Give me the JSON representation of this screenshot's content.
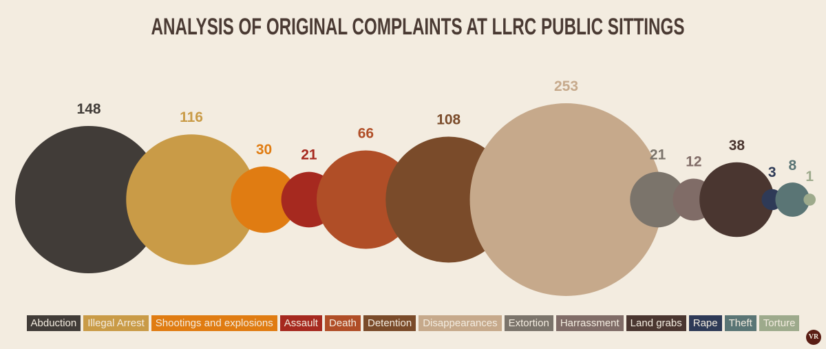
{
  "chart_data": {
    "type": "bubble",
    "title": "ANALYSIS OF ORIGINAL COMPLAINTS AT LLRC PUBLIC SITTINGS",
    "categories": [
      "Abduction",
      "Illegal Arrest",
      "Shootings and explosions",
      "Assault",
      "Death",
      "Detention",
      "Disappearances",
      "Extortion",
      "Harrassment",
      "Land grabs",
      "Rape",
      "Theft",
      "Torture"
    ],
    "values": [
      148,
      116,
      30,
      21,
      66,
      108,
      253,
      21,
      12,
      38,
      3,
      8,
      1
    ],
    "colors": [
      "#413c38",
      "#c99b47",
      "#e07c12",
      "#a6291f",
      "#b04e27",
      "#7a4b2a",
      "#c6a98b",
      "#7b746b",
      "#806c67",
      "#4a3630",
      "#2e3a57",
      "#5a7575",
      "#9daa8c"
    ],
    "legend_position": "bottom",
    "watermark": "VR"
  }
}
